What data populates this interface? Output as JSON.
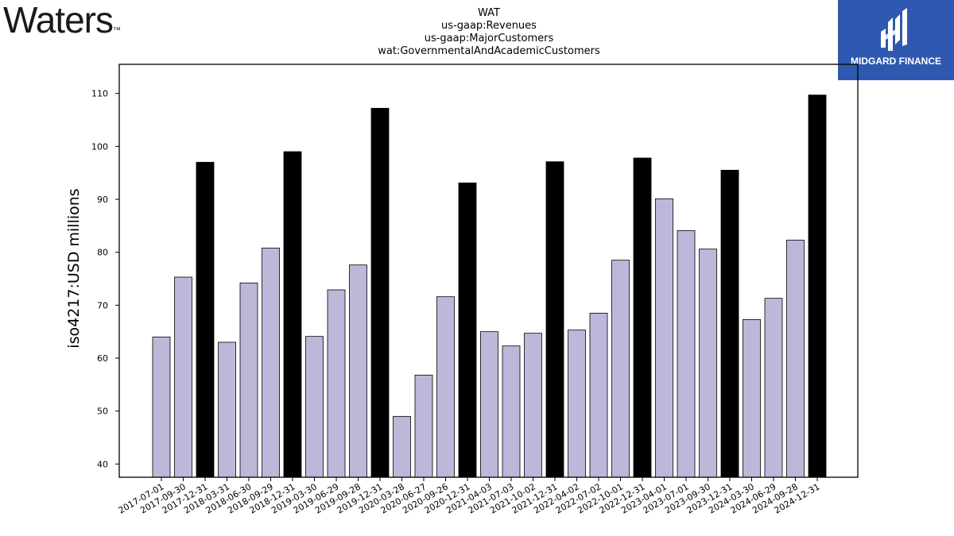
{
  "header": {
    "brand_left": "Waters",
    "brand_left_tm": "™",
    "brand_right": "MIDGARD FINANCE"
  },
  "colors": {
    "quarter_bar": "#bcb8da",
    "annual_bar": "#000000",
    "logo_bg": "#2f59b0"
  },
  "chart_data": {
    "type": "bar",
    "title_lines": [
      "WAT",
      "us-gaap:Revenues",
      "us-gaap:MajorCustomers",
      "wat:GovernmentalAndAcademicCustomers"
    ],
    "xlabel": "",
    "ylabel": "iso4217:USD  millions",
    "ylim": [
      37.5,
      115.5
    ],
    "yticks": [
      40,
      50,
      60,
      70,
      80,
      90,
      100,
      110
    ],
    "categories": [
      "2017-07-01",
      "2017-09-30",
      "2017-12-31",
      "2018-03-31",
      "2018-06-30",
      "2018-09-29",
      "2018-12-31",
      "2019-03-30",
      "2019-06-29",
      "2019-09-28",
      "2019-12-31",
      "2020-03-28",
      "2020-06-27",
      "2020-09-26",
      "2020-12-31",
      "2021-04-03",
      "2021-07-03",
      "2021-10-02",
      "2021-12-31",
      "2022-04-02",
      "2022-07-02",
      "2022-10-01",
      "2022-12-31",
      "2023-04-01",
      "2023-07-01",
      "2023-09-30",
      "2023-12-31",
      "2024-03-30",
      "2024-06-29",
      "2024-09-28",
      "2024-12-31"
    ],
    "values": [
      64.0,
      75.3,
      97.0,
      63.0,
      74.2,
      80.8,
      99.0,
      64.1,
      72.9,
      77.6,
      107.2,
      49.0,
      56.8,
      71.6,
      93.1,
      65.0,
      62.3,
      64.7,
      97.1,
      65.3,
      68.5,
      78.5,
      97.8,
      90.1,
      84.1,
      80.6,
      95.5,
      67.3,
      71.3,
      82.3,
      109.7
    ],
    "annual": [
      false,
      false,
      true,
      false,
      false,
      false,
      true,
      false,
      false,
      false,
      true,
      false,
      false,
      false,
      true,
      false,
      false,
      false,
      true,
      false,
      false,
      false,
      true,
      false,
      false,
      false,
      true,
      false,
      false,
      false,
      true
    ],
    "grid": false,
    "legend": "none"
  }
}
